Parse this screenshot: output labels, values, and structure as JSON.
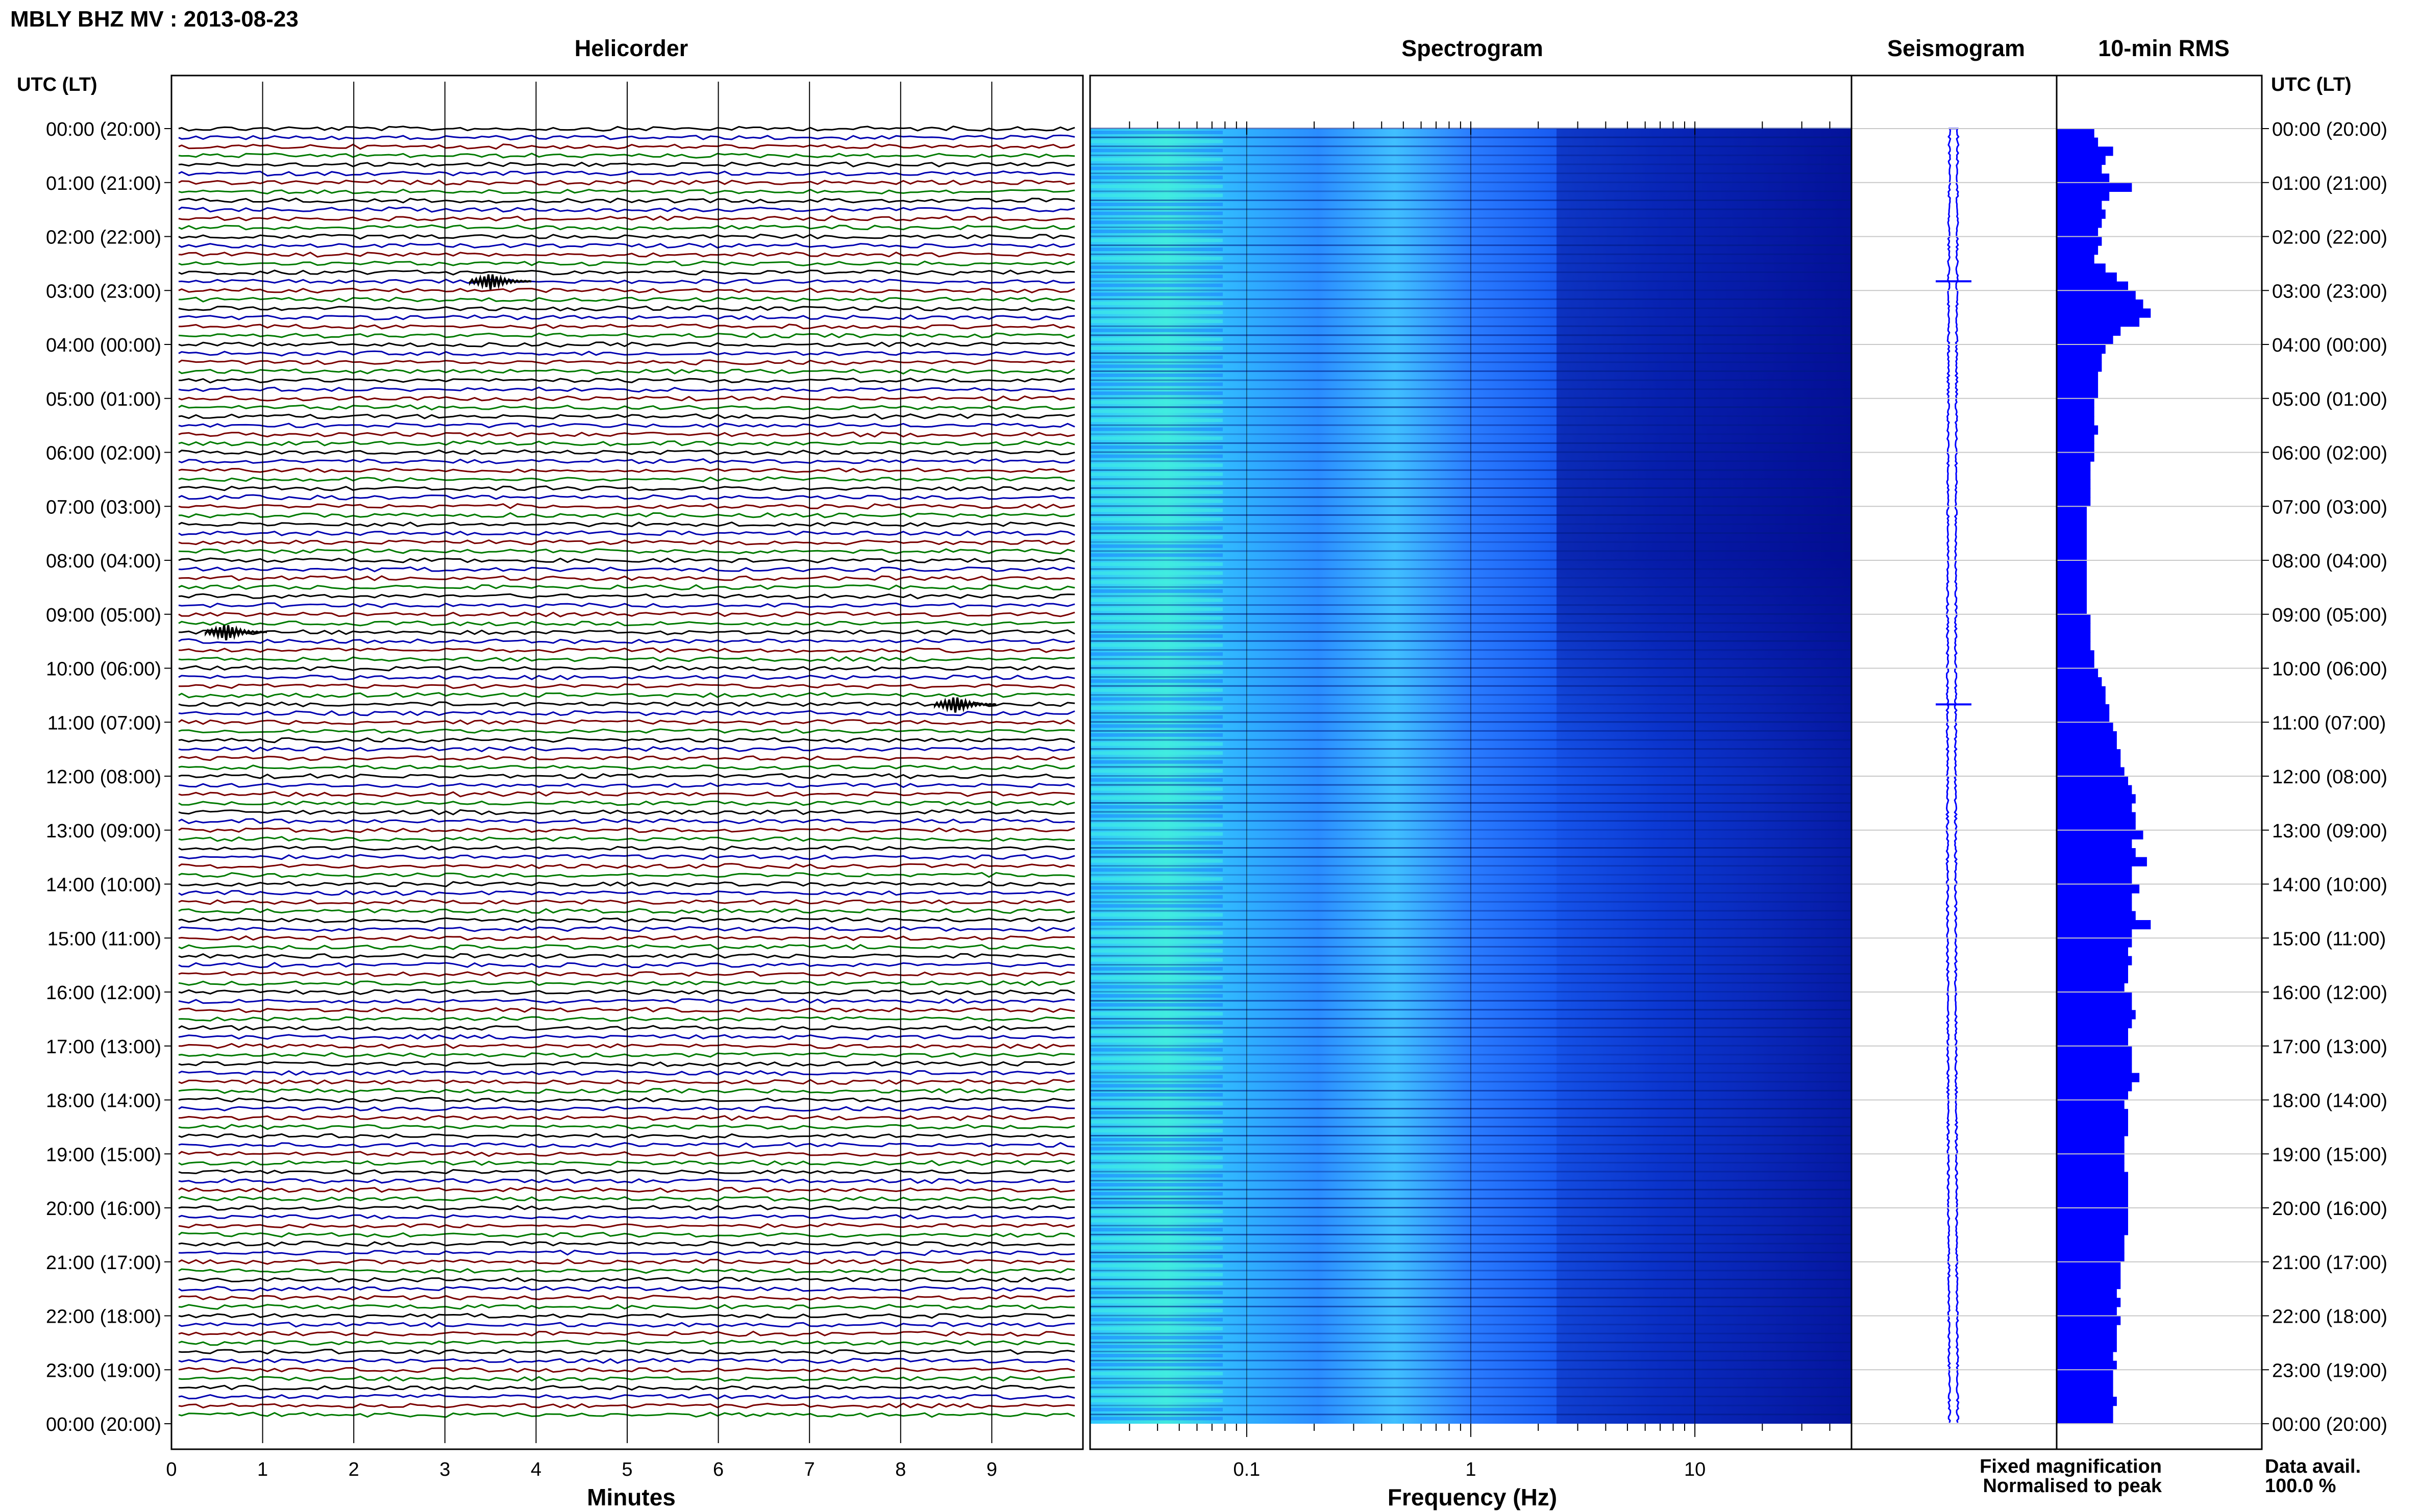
{
  "header": {
    "station_title": "MBLY BHZ MV : 2013-08-23",
    "utc_label_left": "UTC (LT)",
    "utc_label_right": "UTC (LT)"
  },
  "panels": {
    "helicorder": "Helicorder",
    "spectrogram": "Spectrogram",
    "seismogram": "Seismogram",
    "rms": "10-min RMS"
  },
  "legend": {
    "fixed": "Fixed magnification",
    "fixed_color": "#0000ff",
    "normalised": "Normalised to peak",
    "normalised_color": "#ff0000",
    "avail_label": "Data avail.",
    "avail_value": "100.0 %"
  },
  "trace_colors": [
    "#000000",
    "#0000b0",
    "#7a0000",
    "#007a00"
  ],
  "chart_data": [
    {
      "type": "line",
      "panel": "helicorder",
      "xlabel": "Minutes",
      "xlim": [
        0,
        10
      ],
      "x_ticks": [
        0,
        1,
        2,
        3,
        4,
        5,
        6,
        7,
        8,
        9
      ],
      "y_ticks": [
        "00:00 (20:00)",
        "01:00 (21:00)",
        "02:00 (22:00)",
        "03:00 (23:00)",
        "04:00 (00:00)",
        "05:00 (01:00)",
        "06:00 (02:00)",
        "07:00 (03:00)",
        "08:00 (04:00)",
        "09:00 (05:00)",
        "10:00 (06:00)",
        "11:00 (07:00)",
        "12:00 (08:00)",
        "13:00 (09:00)",
        "14:00 (10:00)",
        "15:00 (11:00)",
        "16:00 (12:00)",
        "17:00 (13:00)",
        "18:00 (14:00)",
        "19:00 (15:00)",
        "20:00 (16:00)",
        "21:00 (17:00)",
        "22:00 (18:00)",
        "23:00 (19:00)",
        "00:00 (20:00)"
      ],
      "lines_per_hour": 6,
      "events": [
        {
          "hour": 2.83,
          "minute": 3.5
        },
        {
          "hour": 9.33,
          "minute": 0.6
        },
        {
          "hour": 10.67,
          "minute": 8.6
        }
      ]
    },
    {
      "type": "heatmap",
      "panel": "spectrogram",
      "xlabel": "Frequency (Hz)",
      "xscale": "log",
      "xlim": [
        0.02,
        50
      ],
      "x_ticks": [
        "0.1",
        "1",
        "10"
      ],
      "colormap": [
        "#0000a0",
        "#0030ff",
        "#2080ff",
        "#30c0ff",
        "#40ffe0",
        "#a0ff60"
      ]
    },
    {
      "type": "line",
      "panel": "seismogram",
      "orientation": "vertical",
      "event_hours": [
        2.83,
        10.67
      ]
    },
    {
      "type": "bar",
      "panel": "rms",
      "orientation": "horizontal",
      "xlim": [
        0,
        3
      ],
      "values": [
        1.0,
        1.1,
        1.5,
        1.3,
        1.2,
        1.4,
        2.0,
        1.4,
        1.2,
        1.3,
        1.2,
        1.1,
        1.2,
        1.1,
        1.0,
        1.3,
        1.6,
        1.9,
        2.1,
        2.3,
        2.5,
        2.2,
        1.7,
        1.5,
        1.3,
        1.2,
        1.2,
        1.1,
        1.1,
        1.1,
        1.0,
        1.0,
        1.0,
        1.1,
        1.0,
        1.0,
        1.0,
        0.9,
        0.9,
        0.9,
        0.9,
        0.9,
        0.8,
        0.8,
        0.8,
        0.8,
        0.8,
        0.8,
        0.8,
        0.8,
        0.8,
        0.8,
        0.8,
        0.8,
        0.9,
        0.9,
        0.9,
        0.9,
        1.0,
        1.0,
        1.1,
        1.2,
        1.3,
        1.3,
        1.4,
        1.4,
        1.5,
        1.6,
        1.6,
        1.7,
        1.7,
        1.8,
        1.9,
        2.0,
        2.1,
        2.0,
        2.1,
        2.1,
        2.3,
        2.0,
        2.1,
        2.4,
        2.0,
        2.0,
        2.2,
        2.0,
        2.0,
        2.1,
        2.5,
        2.0,
        2.0,
        1.9,
        2.0,
        1.9,
        1.9,
        1.8,
        2.0,
        2.0,
        2.1,
        2.0,
        1.9,
        1.9,
        2.0,
        2.0,
        2.0,
        2.2,
        2.0,
        1.9,
        1.8,
        1.9,
        1.9,
        1.9,
        1.8,
        1.8,
        1.8,
        1.8,
        1.9,
        1.9,
        1.9,
        1.9,
        1.9,
        1.9,
        1.9,
        1.8,
        1.8,
        1.8,
        1.7,
        1.7,
        1.7,
        1.6,
        1.7,
        1.6,
        1.7,
        1.6,
        1.6,
        1.6,
        1.5,
        1.6,
        1.5,
        1.5,
        1.5,
        1.6,
        1.5,
        1.5
      ]
    }
  ]
}
